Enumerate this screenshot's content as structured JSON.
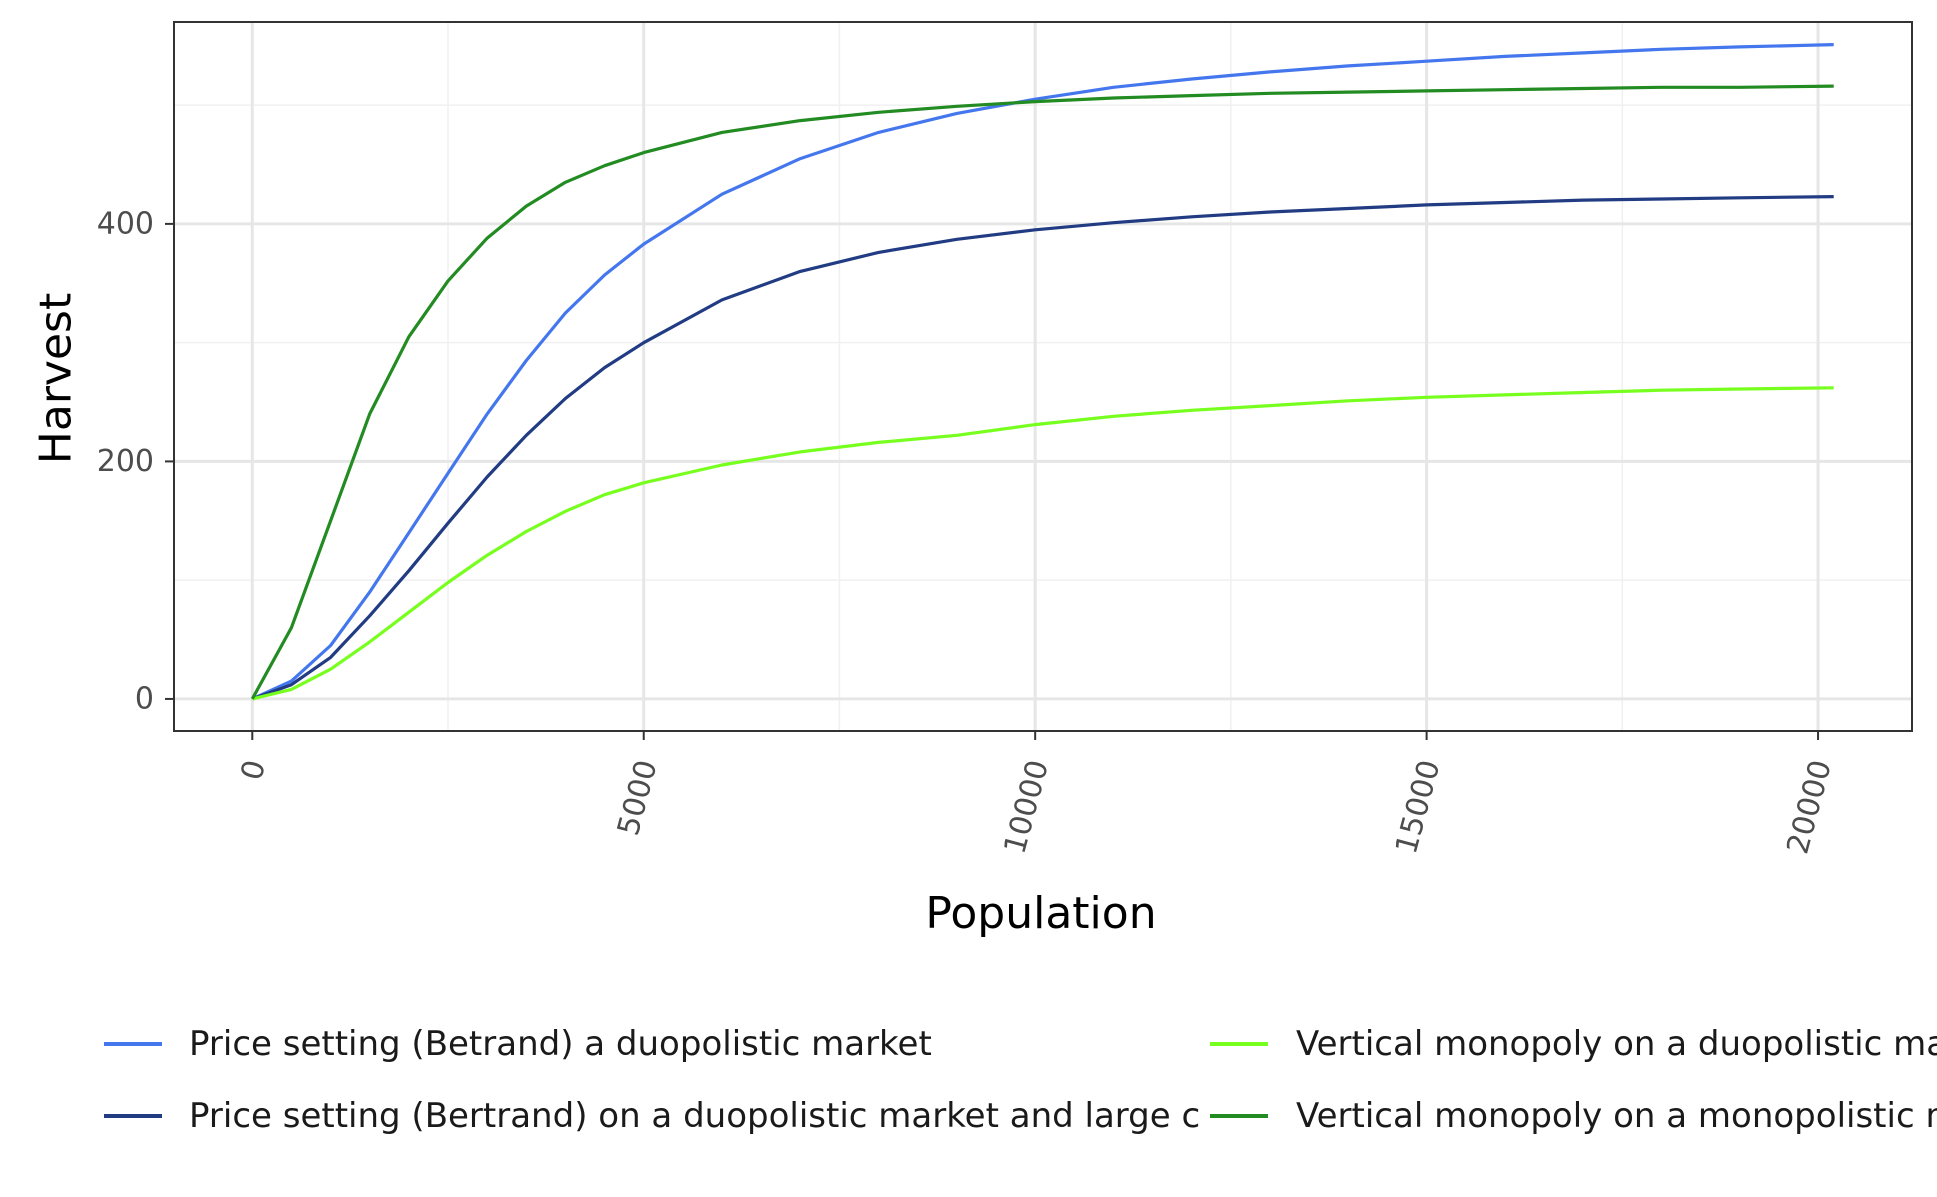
{
  "chart_data": {
    "type": "line",
    "xlabel": "Population",
    "ylabel": "Harvest",
    "xlim": [
      -1000,
      21200
    ],
    "ylim": [
      -27,
      570
    ],
    "x_ticks": [
      0,
      5000,
      10000,
      15000,
      20000
    ],
    "x_tick_labels": [
      "0",
      "5000",
      "10000",
      "15000",
      "20000"
    ],
    "y_ticks": [
      0,
      200,
      400
    ],
    "y_tick_labels": [
      "0",
      "200",
      "400"
    ],
    "grid": true,
    "legend_position": "bottom",
    "series": [
      {
        "name": "Price setting (Betrand) a duopolistic market",
        "color": "#4477ee",
        "x": [
          0,
          500,
          1000,
          1500,
          2000,
          2500,
          3000,
          3500,
          4000,
          4500,
          5000,
          6000,
          7000,
          8000,
          9000,
          10000,
          11000,
          12000,
          13000,
          14000,
          15000,
          16000,
          17000,
          18000,
          19000,
          20200
        ],
        "y": [
          0,
          15,
          45,
          90,
          140,
          190,
          240,
          285,
          325,
          357,
          383,
          425,
          455,
          477,
          493,
          505,
          515,
          522,
          528,
          533,
          537,
          541,
          544,
          547,
          549,
          551
        ]
      },
      {
        "name": "Price setting (Bertrand) on a duopolistic market and large c",
        "color": "#223c84",
        "x": [
          0,
          500,
          1000,
          1500,
          2000,
          2500,
          3000,
          3500,
          4000,
          4500,
          5000,
          6000,
          7000,
          8000,
          9000,
          10000,
          11000,
          12000,
          13000,
          14000,
          15000,
          16000,
          17000,
          18000,
          19000,
          20200
        ],
        "y": [
          0,
          12,
          35,
          70,
          108,
          148,
          187,
          222,
          253,
          279,
          300,
          336,
          360,
          376,
          387,
          395,
          401,
          406,
          410,
          413,
          416,
          418,
          420,
          421,
          422,
          423
        ]
      },
      {
        "name": "Vertical monopoly on a duopolistic market",
        "color": "#77ff1e",
        "x": [
          0,
          500,
          1000,
          1500,
          2000,
          2500,
          3000,
          3500,
          4000,
          4500,
          5000,
          6000,
          7000,
          8000,
          9000,
          10000,
          11000,
          12000,
          13000,
          14000,
          15000,
          16000,
          17000,
          18000,
          19000,
          20200
        ],
        "y": [
          0,
          8,
          25,
          48,
          73,
          98,
          121,
          141,
          158,
          172,
          182,
          197,
          208,
          216,
          222,
          231,
          238,
          243,
          247,
          251,
          254,
          256,
          258,
          260,
          261,
          262
        ]
      },
      {
        "name": "Vertical monopoly on a monopolistic market",
        "color": "#228b22",
        "x": [
          0,
          500,
          1000,
          1500,
          2000,
          2500,
          3000,
          3500,
          4000,
          4500,
          5000,
          6000,
          7000,
          8000,
          9000,
          10000,
          11000,
          12000,
          13000,
          14000,
          15000,
          16000,
          17000,
          18000,
          19000,
          20200
        ],
        "y": [
          0,
          60,
          150,
          240,
          305,
          352,
          388,
          415,
          435,
          449,
          460,
          477,
          487,
          494,
          499,
          503,
          506,
          508,
          510,
          511,
          512,
          513,
          514,
          515,
          515,
          516
        ]
      }
    ]
  }
}
